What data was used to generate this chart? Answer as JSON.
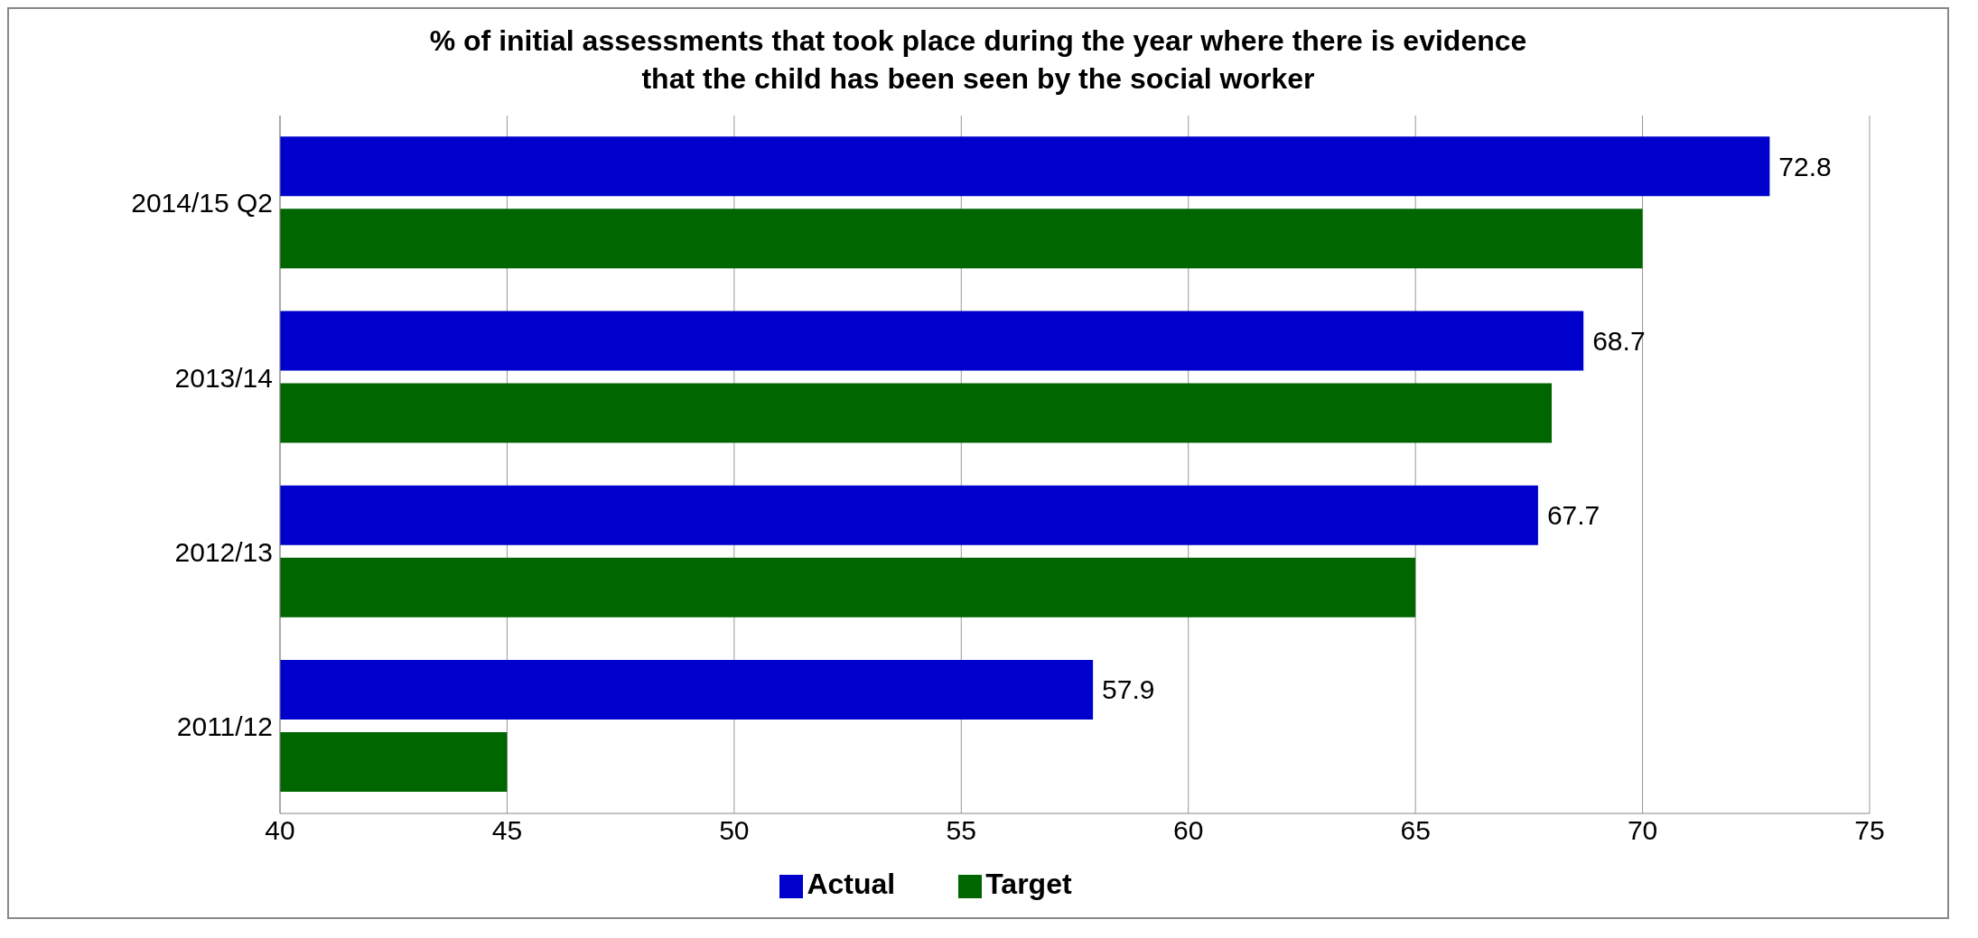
{
  "chart_data": {
    "type": "bar",
    "orientation": "horizontal",
    "title": "% of initial assessments that took place during the year where there is evidence\nthat the child has been seen by the social worker",
    "categories": [
      "2014/15 Q2",
      "2013/14",
      "2012/13",
      "2011/12"
    ],
    "series": [
      {
        "name": "Actual",
        "color": "#0000cc",
        "values": [
          72.8,
          68.7,
          67.7,
          57.9
        ],
        "value_labels": [
          "72.8",
          "68.7",
          "67.7",
          "57.9"
        ]
      },
      {
        "name": "Target",
        "color": "#006600",
        "values": [
          70,
          68,
          65,
          45
        ]
      }
    ],
    "xlim": [
      40,
      75
    ],
    "xticks": [
      40,
      45,
      50,
      55,
      60,
      65,
      70,
      75
    ],
    "grid": "x",
    "legend": "bottom"
  }
}
